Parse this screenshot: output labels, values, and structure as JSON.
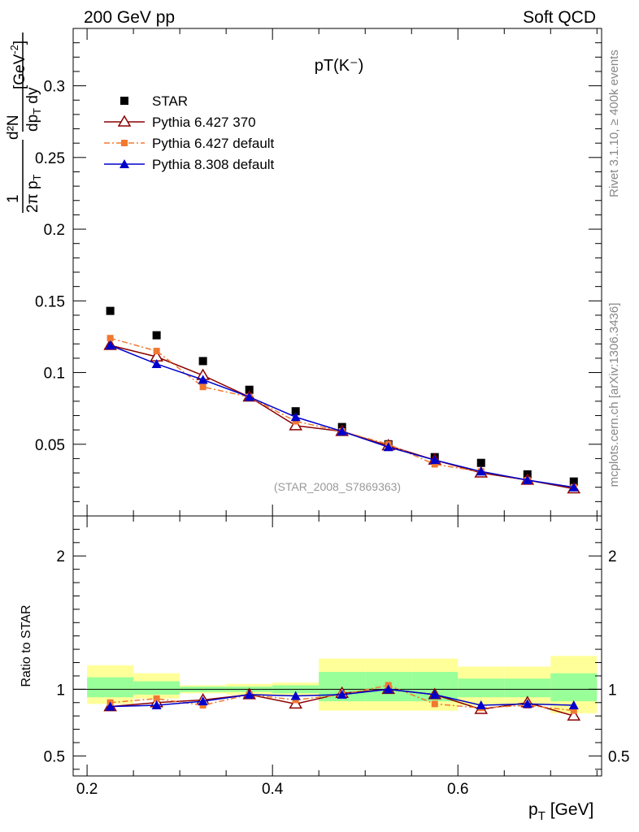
{
  "header": {
    "left": "200 GeV pp",
    "right": "Soft QCD"
  },
  "side_labels": {
    "rivet": "Rivet 3.1.10, ≥ 400k events",
    "mcplots": "mcplots.cern.ch [arXiv:1306.3436]"
  },
  "chart_data": {
    "type": "scatter",
    "title": "pT(K⁻)",
    "reference_id": "(STAR_2008_S7869363)",
    "x_label": "p_T [GeV]",
    "x_range": [
      0.185,
      0.755
    ],
    "x_ticks": [
      "0.2",
      "0.4",
      "0.6"
    ],
    "x": [
      0.225,
      0.275,
      0.325,
      0.375,
      0.425,
      0.475,
      0.525,
      0.575,
      0.625,
      0.675,
      0.725
    ],
    "main_panel": {
      "y_label": "1/(2π p_T) d²N/(dp_T dy) [GeV⁻²]",
      "y_range": [
        0,
        0.34
      ],
      "y_ticks": [
        "0.05",
        "0.1",
        "0.15",
        "0.2",
        "0.25",
        "0.3"
      ],
      "series": [
        {
          "name": "STAR",
          "marker": "square",
          "color": "#000000",
          "values": [
            0.143,
            0.126,
            0.108,
            0.088,
            0.073,
            0.062,
            0.05,
            0.041,
            0.037,
            0.029,
            0.024
          ]
        },
        {
          "name": "Pythia 6.427 370",
          "marker": "open-triangle",
          "color": "#8b0000",
          "values": [
            0.119,
            0.111,
            0.098,
            0.083,
            0.063,
            0.059,
            0.049,
            0.039,
            0.03,
            0.025,
            0.019
          ]
        },
        {
          "name": "Pythia 6.427 default",
          "marker": "square-small",
          "color": "#f07830",
          "values": [
            0.124,
            0.115,
            0.09,
            0.083,
            0.066,
            0.059,
            0.05,
            0.036,
            0.031,
            0.025,
            0.02
          ]
        },
        {
          "name": "Pythia 8.308 default",
          "marker": "triangle",
          "color": "#0000cc",
          "values": [
            0.119,
            0.106,
            0.095,
            0.083,
            0.069,
            0.059,
            0.048,
            0.039,
            0.031,
            0.025,
            0.02
          ]
        }
      ]
    },
    "ratio_panel": {
      "y_label": "Ratio to STAR",
      "y_range": [
        0.35,
        2.3
      ],
      "y_ticks": [
        "0.5",
        "1",
        "2"
      ],
      "bands": {
        "edges": [
          0.2,
          0.25,
          0.3,
          0.35,
          0.4,
          0.45,
          0.5,
          0.55,
          0.6,
          0.65,
          0.7,
          0.75
        ],
        "yellow_lo": [
          0.89,
          0.93,
          0.97,
          0.96,
          0.95,
          0.84,
          0.84,
          0.84,
          0.88,
          0.88,
          0.82
        ],
        "yellow_hi": [
          1.18,
          1.12,
          1.03,
          1.04,
          1.05,
          1.23,
          1.23,
          1.23,
          1.17,
          1.17,
          1.25
        ],
        "green_lo": [
          0.94,
          0.96,
          0.98,
          0.98,
          0.97,
          0.91,
          0.91,
          0.91,
          0.94,
          0.94,
          0.91
        ],
        "green_hi": [
          1.09,
          1.06,
          1.02,
          1.02,
          1.03,
          1.13,
          1.13,
          1.13,
          1.08,
          1.08,
          1.12
        ]
      },
      "series": [
        {
          "name": "Pythia 6.427 370",
          "color": "#8b0000",
          "marker": "open-triangle",
          "values": [
            0.87,
            0.9,
            0.92,
            0.96,
            0.89,
            0.97,
            1.0,
            0.96,
            0.85,
            0.9,
            0.8
          ]
        },
        {
          "name": "Pythia 6.427 default",
          "color": "#f07830",
          "marker": "square-small",
          "values": [
            0.9,
            0.93,
            0.88,
            0.96,
            0.92,
            0.96,
            1.03,
            0.89,
            0.86,
            0.88,
            0.84
          ]
        },
        {
          "name": "Pythia 8.308 default",
          "color": "#0000cc",
          "marker": "triangle",
          "values": [
            0.87,
            0.88,
            0.91,
            0.96,
            0.95,
            0.96,
            1.0,
            0.96,
            0.88,
            0.89,
            0.88
          ]
        }
      ]
    }
  }
}
